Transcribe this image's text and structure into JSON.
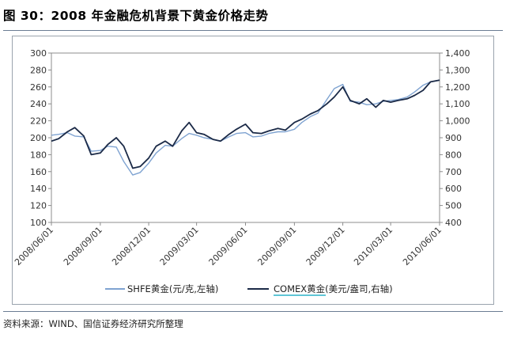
{
  "header": {
    "title": "图 30：2008 年金融危机背景下黄金价格走势"
  },
  "footer": {
    "source": "资料来源：WIND、国信证券经济研究所整理"
  },
  "colors": {
    "shfe": "#7fa3d1",
    "comex": "#1b2a47",
    "legend_underline": "#2bb3c9",
    "rule": "#6b7c93"
  },
  "chart_data": {
    "type": "line",
    "title": "",
    "x_ticks": [
      "2008/06/01",
      "2008/09/01",
      "2008/12/01",
      "2009/03/01",
      "2009/06/01",
      "2009/09/01",
      "2009/12/01",
      "2010/03/01",
      "2010/06/01"
    ],
    "y_left": {
      "ylim": [
        100,
        300
      ],
      "ticks": [
        "100",
        "120",
        "140",
        "160",
        "180",
        "200",
        "220",
        "240",
        "260",
        "280",
        "300"
      ]
    },
    "y_right": {
      "ylim": [
        400,
        1400
      ],
      "ticks": [
        "400",
        "500",
        "600",
        "700",
        "800",
        "900",
        "1,000",
        "1,100",
        "1,200",
        "1,300",
        "1,400"
      ]
    },
    "legend_placement": "bottom",
    "grid": false,
    "series": [
      {
        "name": "SHFE黄金(元/克,左轴)",
        "axis": "left",
        "points": [
          [
            "2008/06/01",
            203
          ],
          [
            "2008/06/15",
            204
          ],
          [
            "2008/07/01",
            206
          ],
          [
            "2008/07/15",
            202
          ],
          [
            "2008/08/01",
            201
          ],
          [
            "2008/08/15",
            184
          ],
          [
            "2008/09/01",
            185
          ],
          [
            "2008/09/15",
            190
          ],
          [
            "2008/10/01",
            189
          ],
          [
            "2008/10/15",
            172
          ],
          [
            "2008/11/01",
            156
          ],
          [
            "2008/11/15",
            159
          ],
          [
            "2008/12/01",
            170
          ],
          [
            "2008/12/15",
            182
          ],
          [
            "2009/01/01",
            191
          ],
          [
            "2009/01/15",
            190
          ],
          [
            "2009/02/01",
            199
          ],
          [
            "2009/02/15",
            205
          ],
          [
            "2009/03/01",
            203
          ],
          [
            "2009/03/15",
            200
          ],
          [
            "2009/04/01",
            198
          ],
          [
            "2009/04/15",
            196
          ],
          [
            "2009/05/01",
            201
          ],
          [
            "2009/05/15",
            205
          ],
          [
            "2009/06/01",
            206
          ],
          [
            "2009/06/15",
            201
          ],
          [
            "2009/07/01",
            202
          ],
          [
            "2009/07/15",
            205
          ],
          [
            "2009/08/01",
            207
          ],
          [
            "2009/08/15",
            207
          ],
          [
            "2009/09/01",
            210
          ],
          [
            "2009/09/15",
            218
          ],
          [
            "2009/10/01",
            225
          ],
          [
            "2009/10/15",
            229
          ],
          [
            "2009/11/01",
            245
          ],
          [
            "2009/11/15",
            258
          ],
          [
            "2009/12/01",
            263
          ],
          [
            "2009/12/15",
            243
          ],
          [
            "2010/01/01",
            242
          ],
          [
            "2010/01/15",
            239
          ],
          [
            "2010/02/01",
            240
          ],
          [
            "2010/02/15",
            243
          ],
          [
            "2010/03/01",
            244
          ],
          [
            "2010/03/15",
            245
          ],
          [
            "2010/04/01",
            248
          ],
          [
            "2010/04/15",
            254
          ],
          [
            "2010/05/01",
            262
          ],
          [
            "2010/05/15",
            266
          ],
          [
            "2010/06/01",
            268
          ]
        ]
      },
      {
        "name": "COMEX黄金(美元/盎司,右轴)",
        "axis": "right",
        "points": [
          [
            "2008/06/01",
            880
          ],
          [
            "2008/06/15",
            895
          ],
          [
            "2008/07/01",
            935
          ],
          [
            "2008/07/15",
            960
          ],
          [
            "2008/08/01",
            910
          ],
          [
            "2008/08/15",
            800
          ],
          [
            "2008/09/01",
            810
          ],
          [
            "2008/09/15",
            860
          ],
          [
            "2008/10/01",
            900
          ],
          [
            "2008/10/15",
            850
          ],
          [
            "2008/11/01",
            720
          ],
          [
            "2008/11/15",
            730
          ],
          [
            "2008/12/01",
            780
          ],
          [
            "2008/12/15",
            850
          ],
          [
            "2009/01/01",
            880
          ],
          [
            "2009/01/15",
            850
          ],
          [
            "2009/02/01",
            940
          ],
          [
            "2009/02/15",
            990
          ],
          [
            "2009/03/01",
            930
          ],
          [
            "2009/03/15",
            920
          ],
          [
            "2009/04/01",
            890
          ],
          [
            "2009/04/15",
            880
          ],
          [
            "2009/05/01",
            920
          ],
          [
            "2009/05/15",
            950
          ],
          [
            "2009/06/01",
            980
          ],
          [
            "2009/06/15",
            930
          ],
          [
            "2009/07/01",
            925
          ],
          [
            "2009/07/15",
            940
          ],
          [
            "2009/08/01",
            955
          ],
          [
            "2009/08/15",
            945
          ],
          [
            "2009/09/01",
            990
          ],
          [
            "2009/09/15",
            1010
          ],
          [
            "2009/10/01",
            1040
          ],
          [
            "2009/10/15",
            1060
          ],
          [
            "2009/11/01",
            1100
          ],
          [
            "2009/11/15",
            1140
          ],
          [
            "2009/12/01",
            1200
          ],
          [
            "2009/12/15",
            1120
          ],
          [
            "2010/01/01",
            1100
          ],
          [
            "2010/01/15",
            1130
          ],
          [
            "2010/02/01",
            1080
          ],
          [
            "2010/02/15",
            1120
          ],
          [
            "2010/03/01",
            1110
          ],
          [
            "2010/03/15",
            1120
          ],
          [
            "2010/04/01",
            1130
          ],
          [
            "2010/04/15",
            1150
          ],
          [
            "2010/05/01",
            1180
          ],
          [
            "2010/05/15",
            1230
          ],
          [
            "2010/06/01",
            1240
          ]
        ]
      }
    ]
  }
}
